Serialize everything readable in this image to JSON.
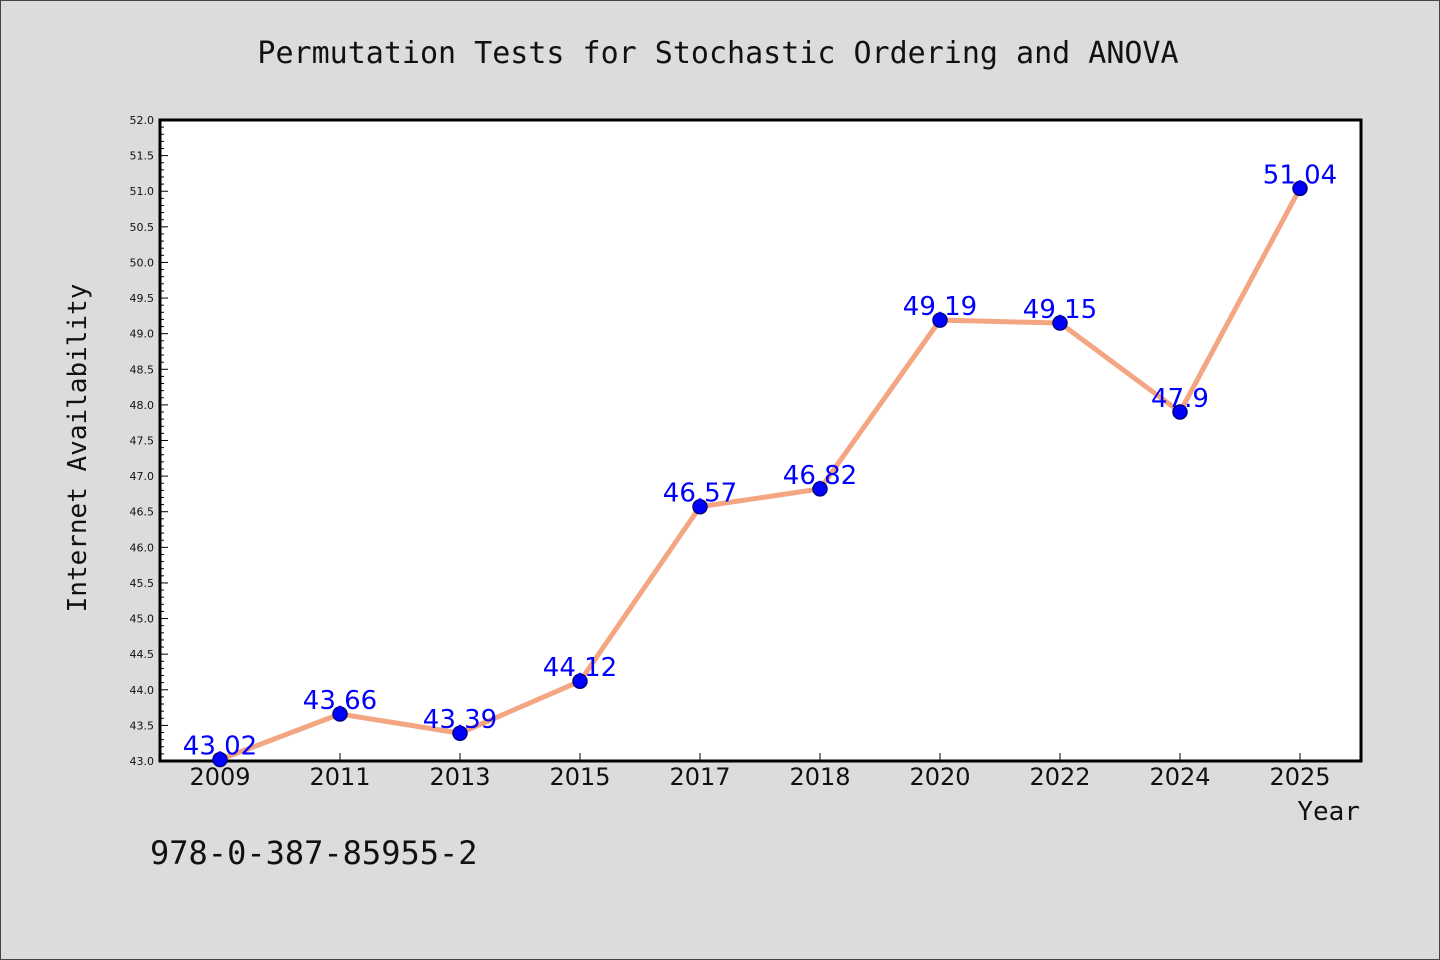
{
  "chart_data": {
    "type": "line",
    "title": "Permutation Tests for Stochastic Ordering and ANOVA",
    "xlabel": "Year",
    "ylabel": "Internet Availability",
    "categories": [
      "2009",
      "2011",
      "2013",
      "2015",
      "2017",
      "2018",
      "2020",
      "2022",
      "2024",
      "2025"
    ],
    "series": [
      {
        "values": [
          43.02,
          43.66,
          43.39,
          44.12,
          46.57,
          46.82,
          49.19,
          49.15,
          47.9,
          51.04
        ],
        "labels": [
          "43.02",
          "43.66",
          "43.39",
          "44.12",
          "46.57",
          "46.82",
          "49.19",
          "49.15",
          "47.9",
          "51.04"
        ]
      }
    ],
    "ylim": [
      43.0,
      52.0
    ],
    "yticks": [
      "43.0",
      "43.5",
      "44.0",
      "44.5",
      "45.0",
      "45.5",
      "46.0",
      "46.5",
      "47.0",
      "47.5",
      "48.0",
      "48.5",
      "49.0",
      "49.5",
      "50.0",
      "50.5",
      "51.0",
      "51.5",
      "52.0"
    ],
    "grid": false,
    "colors": {
      "background": "#dcdcdc",
      "plot_background": "#ffffff",
      "line": "#f4a582",
      "marker": "#0000ff",
      "marker_edge": "#000080",
      "data_label": "#0000ff"
    }
  },
  "footer": {
    "text": "978-0-387-85955-2"
  }
}
